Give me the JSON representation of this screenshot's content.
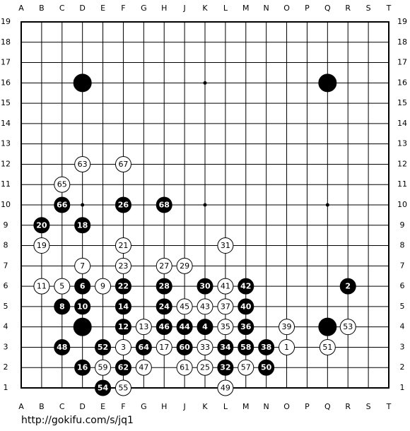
{
  "board": {
    "columns": [
      "A",
      "B",
      "C",
      "D",
      "E",
      "F",
      "G",
      "H",
      "J",
      "K",
      "L",
      "M",
      "N",
      "O",
      "P",
      "Q",
      "R",
      "S",
      "T"
    ],
    "rows": [
      19,
      18,
      17,
      16,
      15,
      14,
      13,
      12,
      11,
      10,
      9,
      8,
      7,
      6,
      5,
      4,
      3,
      2,
      1
    ],
    "stones": [
      {
        "col": "D",
        "row": 16,
        "color": "black"
      },
      {
        "col": "Q",
        "row": 16,
        "color": "black"
      },
      {
        "col": "D",
        "row": 4,
        "color": "black"
      },
      {
        "col": "Q",
        "row": 4,
        "color": "black"
      },
      {
        "col": "O",
        "row": 3,
        "color": "white",
        "label": "1"
      },
      {
        "col": "R",
        "row": 6,
        "color": "black",
        "label": "2"
      },
      {
        "col": "F",
        "row": 3,
        "color": "white",
        "label": "3"
      },
      {
        "col": "K",
        "row": 4,
        "color": "black",
        "label": "4"
      },
      {
        "col": "C",
        "row": 6,
        "color": "white",
        "label": "5"
      },
      {
        "col": "D",
        "row": 6,
        "color": "black",
        "label": "6"
      },
      {
        "col": "D",
        "row": 7,
        "color": "white",
        "label": "7"
      },
      {
        "col": "C",
        "row": 5,
        "color": "black",
        "label": "8"
      },
      {
        "col": "E",
        "row": 6,
        "color": "white",
        "label": "9"
      },
      {
        "col": "D",
        "row": 5,
        "color": "black",
        "label": "10"
      },
      {
        "col": "B",
        "row": 6,
        "color": "white",
        "label": "11"
      },
      {
        "col": "F",
        "row": 4,
        "color": "black",
        "label": "12"
      },
      {
        "col": "G",
        "row": 4,
        "color": "white",
        "label": "13"
      },
      {
        "col": "F",
        "row": 5,
        "color": "black",
        "label": "14"
      },
      {
        "col": "D",
        "row": 2,
        "color": "black",
        "label": "16"
      },
      {
        "col": "H",
        "row": 3,
        "color": "white",
        "label": "17"
      },
      {
        "col": "D",
        "row": 9,
        "color": "black",
        "label": "18"
      },
      {
        "col": "B",
        "row": 8,
        "color": "white",
        "label": "19"
      },
      {
        "col": "B",
        "row": 9,
        "color": "black",
        "label": "20"
      },
      {
        "col": "F",
        "row": 8,
        "color": "white",
        "label": "21"
      },
      {
        "col": "F",
        "row": 6,
        "color": "black",
        "label": "22"
      },
      {
        "col": "F",
        "row": 7,
        "color": "white",
        "label": "23"
      },
      {
        "col": "H",
        "row": 5,
        "color": "black",
        "label": "24"
      },
      {
        "col": "K",
        "row": 2,
        "color": "white",
        "label": "25"
      },
      {
        "col": "F",
        "row": 10,
        "color": "black",
        "label": "26"
      },
      {
        "col": "H",
        "row": 7,
        "color": "white",
        "label": "27"
      },
      {
        "col": "H",
        "row": 6,
        "color": "black",
        "label": "28"
      },
      {
        "col": "J",
        "row": 7,
        "color": "white",
        "label": "29"
      },
      {
        "col": "K",
        "row": 6,
        "color": "black",
        "label": "30"
      },
      {
        "col": "L",
        "row": 8,
        "color": "white",
        "label": "31"
      },
      {
        "col": "L",
        "row": 2,
        "color": "black",
        "label": "32"
      },
      {
        "col": "K",
        "row": 3,
        "color": "white",
        "label": "33"
      },
      {
        "col": "L",
        "row": 3,
        "color": "black",
        "label": "34"
      },
      {
        "col": "L",
        "row": 4,
        "color": "white",
        "label": "35"
      },
      {
        "col": "M",
        "row": 4,
        "color": "black",
        "label": "36"
      },
      {
        "col": "L",
        "row": 5,
        "color": "white",
        "label": "37"
      },
      {
        "col": "N",
        "row": 3,
        "color": "black",
        "label": "38"
      },
      {
        "col": "O",
        "row": 4,
        "color": "white",
        "label": "39"
      },
      {
        "col": "M",
        "row": 5,
        "color": "black",
        "label": "40"
      },
      {
        "col": "L",
        "row": 6,
        "color": "white",
        "label": "41"
      },
      {
        "col": "M",
        "row": 6,
        "color": "black",
        "label": "42"
      },
      {
        "col": "K",
        "row": 5,
        "color": "white",
        "label": "43"
      },
      {
        "col": "J",
        "row": 4,
        "color": "black",
        "label": "44"
      },
      {
        "col": "J",
        "row": 5,
        "color": "white",
        "label": "45"
      },
      {
        "col": "H",
        "row": 4,
        "color": "black",
        "label": "46"
      },
      {
        "col": "G",
        "row": 2,
        "color": "white",
        "label": "47"
      },
      {
        "col": "C",
        "row": 3,
        "color": "black",
        "label": "48"
      },
      {
        "col": "L",
        "row": 1,
        "color": "white",
        "label": "49"
      },
      {
        "col": "N",
        "row": 2,
        "color": "black",
        "label": "50"
      },
      {
        "col": "Q",
        "row": 3,
        "color": "white",
        "label": "51"
      },
      {
        "col": "E",
        "row": 3,
        "color": "black",
        "label": "52"
      },
      {
        "col": "R",
        "row": 4,
        "color": "white",
        "label": "53"
      },
      {
        "col": "E",
        "row": 1,
        "color": "black",
        "label": "54"
      },
      {
        "col": "F",
        "row": 1,
        "color": "white",
        "label": "55"
      },
      {
        "col": "M",
        "row": 2,
        "color": "white",
        "label": "57"
      },
      {
        "col": "M",
        "row": 3,
        "color": "black",
        "label": "58"
      },
      {
        "col": "E",
        "row": 2,
        "color": "white",
        "label": "59"
      },
      {
        "col": "J",
        "row": 3,
        "color": "black",
        "label": "60"
      },
      {
        "col": "J",
        "row": 2,
        "color": "white",
        "label": "61"
      },
      {
        "col": "F",
        "row": 2,
        "color": "black",
        "label": "62"
      },
      {
        "col": "D",
        "row": 12,
        "color": "white",
        "label": "63"
      },
      {
        "col": "G",
        "row": 3,
        "color": "black",
        "label": "64"
      },
      {
        "col": "C",
        "row": 11,
        "color": "white",
        "label": "65"
      },
      {
        "col": "C",
        "row": 10,
        "color": "black",
        "label": "66"
      },
      {
        "col": "F",
        "row": 12,
        "color": "white",
        "label": "67"
      },
      {
        "col": "H",
        "row": 10,
        "color": "black",
        "label": "68"
      }
    ]
  },
  "footer": {
    "url": "http://gokifu.com/s/jq1"
  }
}
